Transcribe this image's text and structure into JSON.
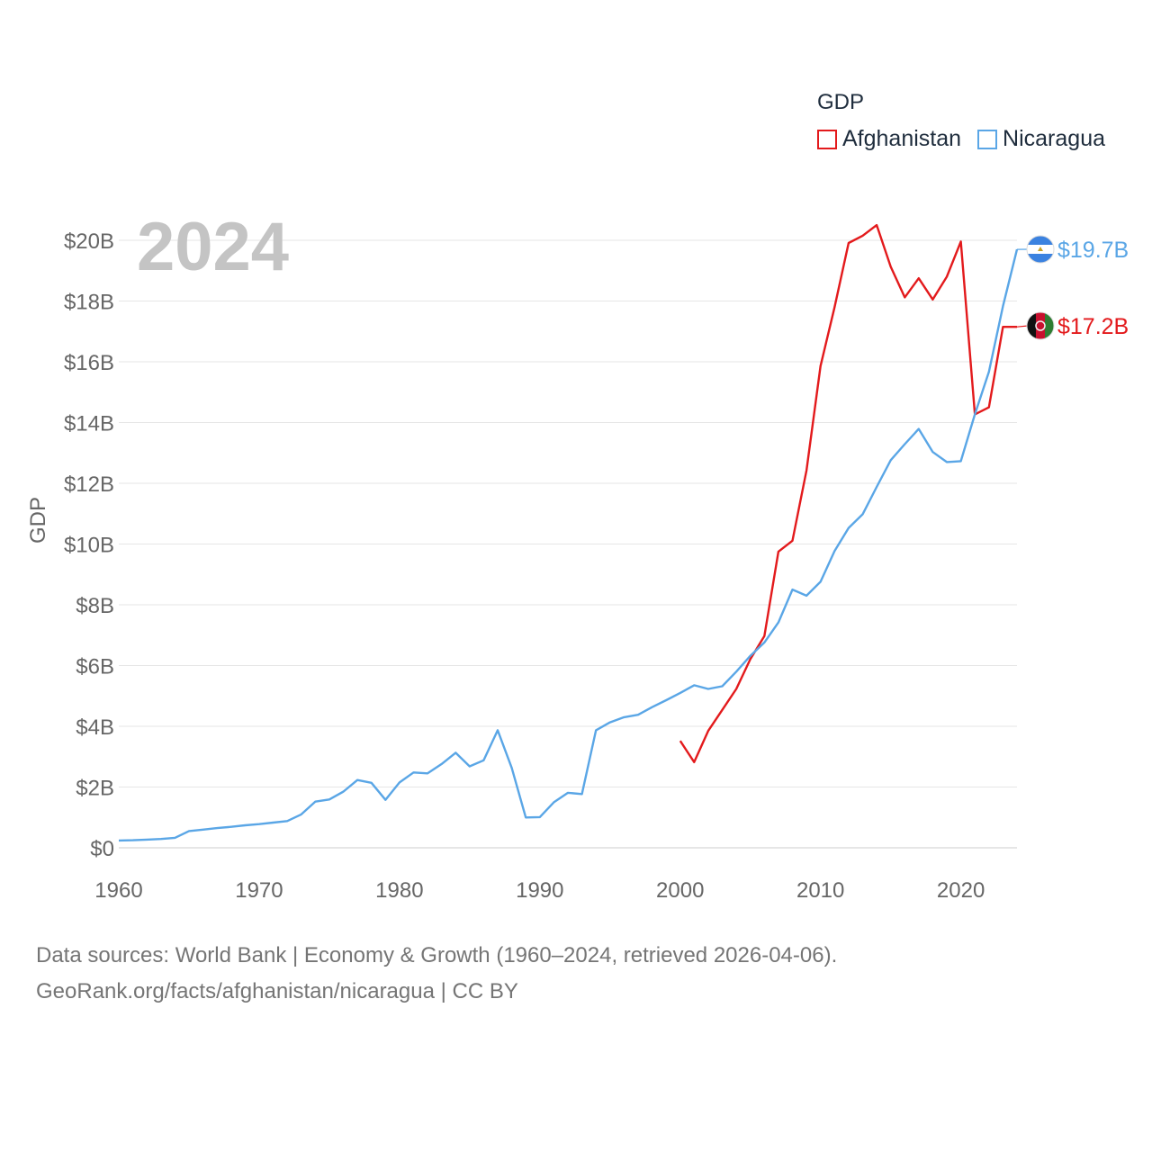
{
  "legend": {
    "title": "GDP",
    "items": [
      {
        "label": "Afghanistan",
        "color": "#e31a1c"
      },
      {
        "label": "Nicaragua",
        "color": "#5aa6e6"
      }
    ]
  },
  "watermark_year": "2024",
  "source": {
    "line1": "Data sources: World Bank | Economy & Growth (1960–2024, retrieved 2026-04-06).",
    "line2": "GeoRank.org/facts/afghanistan/nicaragua | CC BY"
  },
  "chart_data": {
    "type": "line",
    "title": "GDP",
    "xlabel": "",
    "ylabel": "GDP",
    "xlim": [
      1960,
      2024
    ],
    "ylim": [
      0,
      21
    ],
    "y_ticks": [
      0,
      2,
      4,
      6,
      8,
      10,
      12,
      14,
      16,
      18,
      20
    ],
    "y_tick_labels": [
      "$0",
      "$2B",
      "$4B",
      "$6B",
      "$8B",
      "$10B",
      "$12B",
      "$14B",
      "$16B",
      "$18B",
      "$20B"
    ],
    "x_ticks": [
      1960,
      1970,
      1980,
      1990,
      2000,
      2010,
      2020
    ],
    "x_tick_labels": [
      "1960",
      "1970",
      "1980",
      "1990",
      "2000",
      "2010",
      "2020"
    ],
    "units": "billions USD",
    "series": [
      {
        "name": "Afghanistan",
        "color": "#e31a1c",
        "end_label": "$17.2B",
        "flag": "afghanistan",
        "x": [
          2000,
          2001,
          2002,
          2003,
          2004,
          2005,
          2006,
          2007,
          2008,
          2009,
          2010,
          2011,
          2012,
          2013,
          2014,
          2015,
          2016,
          2017,
          2018,
          2019,
          2020,
          2021,
          2022,
          2023,
          2024
        ],
        "values": [
          3.52,
          2.82,
          3.85,
          4.54,
          5.23,
          6.21,
          6.97,
          9.75,
          10.11,
          12.42,
          15.86,
          17.8,
          19.91,
          20.15,
          20.5,
          19.13,
          18.12,
          18.75,
          18.05,
          18.8,
          19.96,
          14.27,
          14.5,
          17.15,
          17.15
        ]
      },
      {
        "name": "Nicaragua",
        "color": "#5aa6e6",
        "end_label": "$19.7B",
        "flag": "nicaragua",
        "x": [
          1960,
          1961,
          1962,
          1963,
          1964,
          1965,
          1966,
          1967,
          1968,
          1969,
          1970,
          1971,
          1972,
          1973,
          1974,
          1975,
          1976,
          1977,
          1978,
          1979,
          1980,
          1981,
          1982,
          1983,
          1984,
          1985,
          1986,
          1987,
          1988,
          1989,
          1990,
          1991,
          1992,
          1993,
          1994,
          1995,
          1996,
          1997,
          1998,
          1999,
          2000,
          2001,
          2002,
          2003,
          2004,
          2005,
          2006,
          2007,
          2008,
          2009,
          2010,
          2011,
          2012,
          2013,
          2014,
          2015,
          2016,
          2017,
          2018,
          2019,
          2020,
          2021,
          2022,
          2023,
          2024
        ],
        "values": [
          0.24,
          0.25,
          0.27,
          0.29,
          0.33,
          0.55,
          0.6,
          0.65,
          0.69,
          0.74,
          0.78,
          0.83,
          0.88,
          1.1,
          1.52,
          1.59,
          1.85,
          2.23,
          2.14,
          1.58,
          2.15,
          2.48,
          2.45,
          2.76,
          3.13,
          2.68,
          2.88,
          3.87,
          2.63,
          1.0,
          1.01,
          1.5,
          1.81,
          1.77,
          3.87,
          4.13,
          4.3,
          4.38,
          4.63,
          4.86,
          5.1,
          5.35,
          5.23,
          5.32,
          5.8,
          6.32,
          6.76,
          7.42,
          8.5,
          8.3,
          8.76,
          9.77,
          10.53,
          10.98,
          11.88,
          12.76,
          13.29,
          13.79,
          13.03,
          12.7,
          12.73,
          14.27,
          15.67,
          17.83,
          19.7
        ]
      }
    ]
  }
}
